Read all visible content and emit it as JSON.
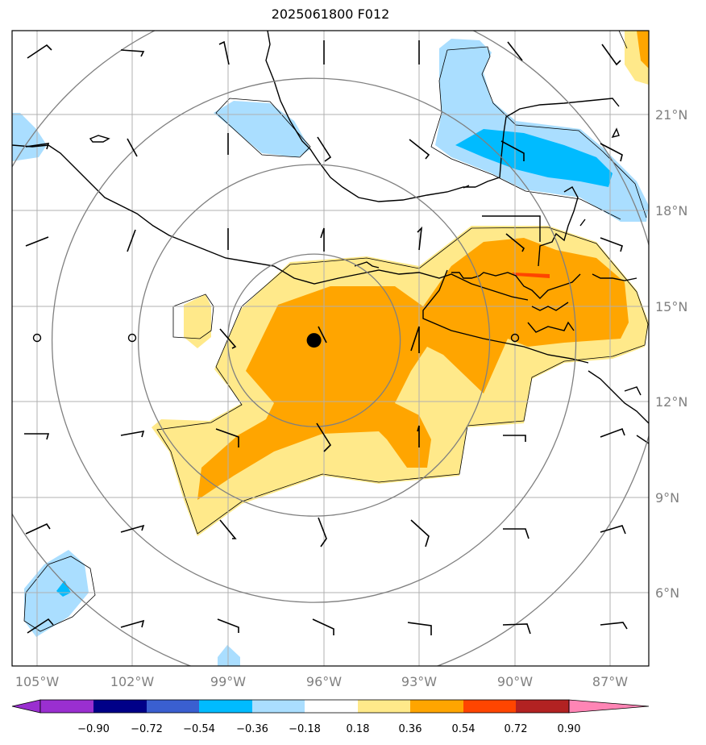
{
  "title": "2025061800 F012",
  "map": {
    "lon_range": [
      -106.0,
      -85.0
    ],
    "lat_range": [
      3.0,
      23.0
    ],
    "lon_ticks": [
      "105°W",
      "102°W",
      "99°W",
      "96°W",
      "93°W",
      "90°W",
      "87°W"
    ],
    "lat_ticks": [
      "6°N",
      "9°N",
      "12°N",
      "15°N",
      "18°N",
      "21°N"
    ],
    "grid": true,
    "storm_center": {
      "lon": -96.2,
      "lat": 13.8
    },
    "range_rings_count": 4,
    "fill_colors": {
      "n090": "#9a2fd0",
      "n072": "#000088",
      "n054": "#3a5fd0",
      "n036": "#00bbff",
      "n018": "#aadeff",
      "zero": "#ffffff",
      "p018": "#ffe98a",
      "p036": "#ffa500",
      "p054": "#ff4500",
      "p072": "#b22222",
      "p090": "#ff85b5"
    }
  },
  "colorbar": {
    "labels": [
      "−0.90",
      "−0.72",
      "−0.54",
      "−0.36",
      "−0.18",
      "0.18",
      "0.36",
      "0.54",
      "0.72",
      "0.90"
    ],
    "colors": [
      "#9a2fd0",
      "#000088",
      "#3a5fd0",
      "#00bbff",
      "#aadeff",
      "#ffffff",
      "#ffe98a",
      "#ffa500",
      "#ff4500",
      "#b22222",
      "#ff85b5"
    ],
    "extend": "both"
  }
}
